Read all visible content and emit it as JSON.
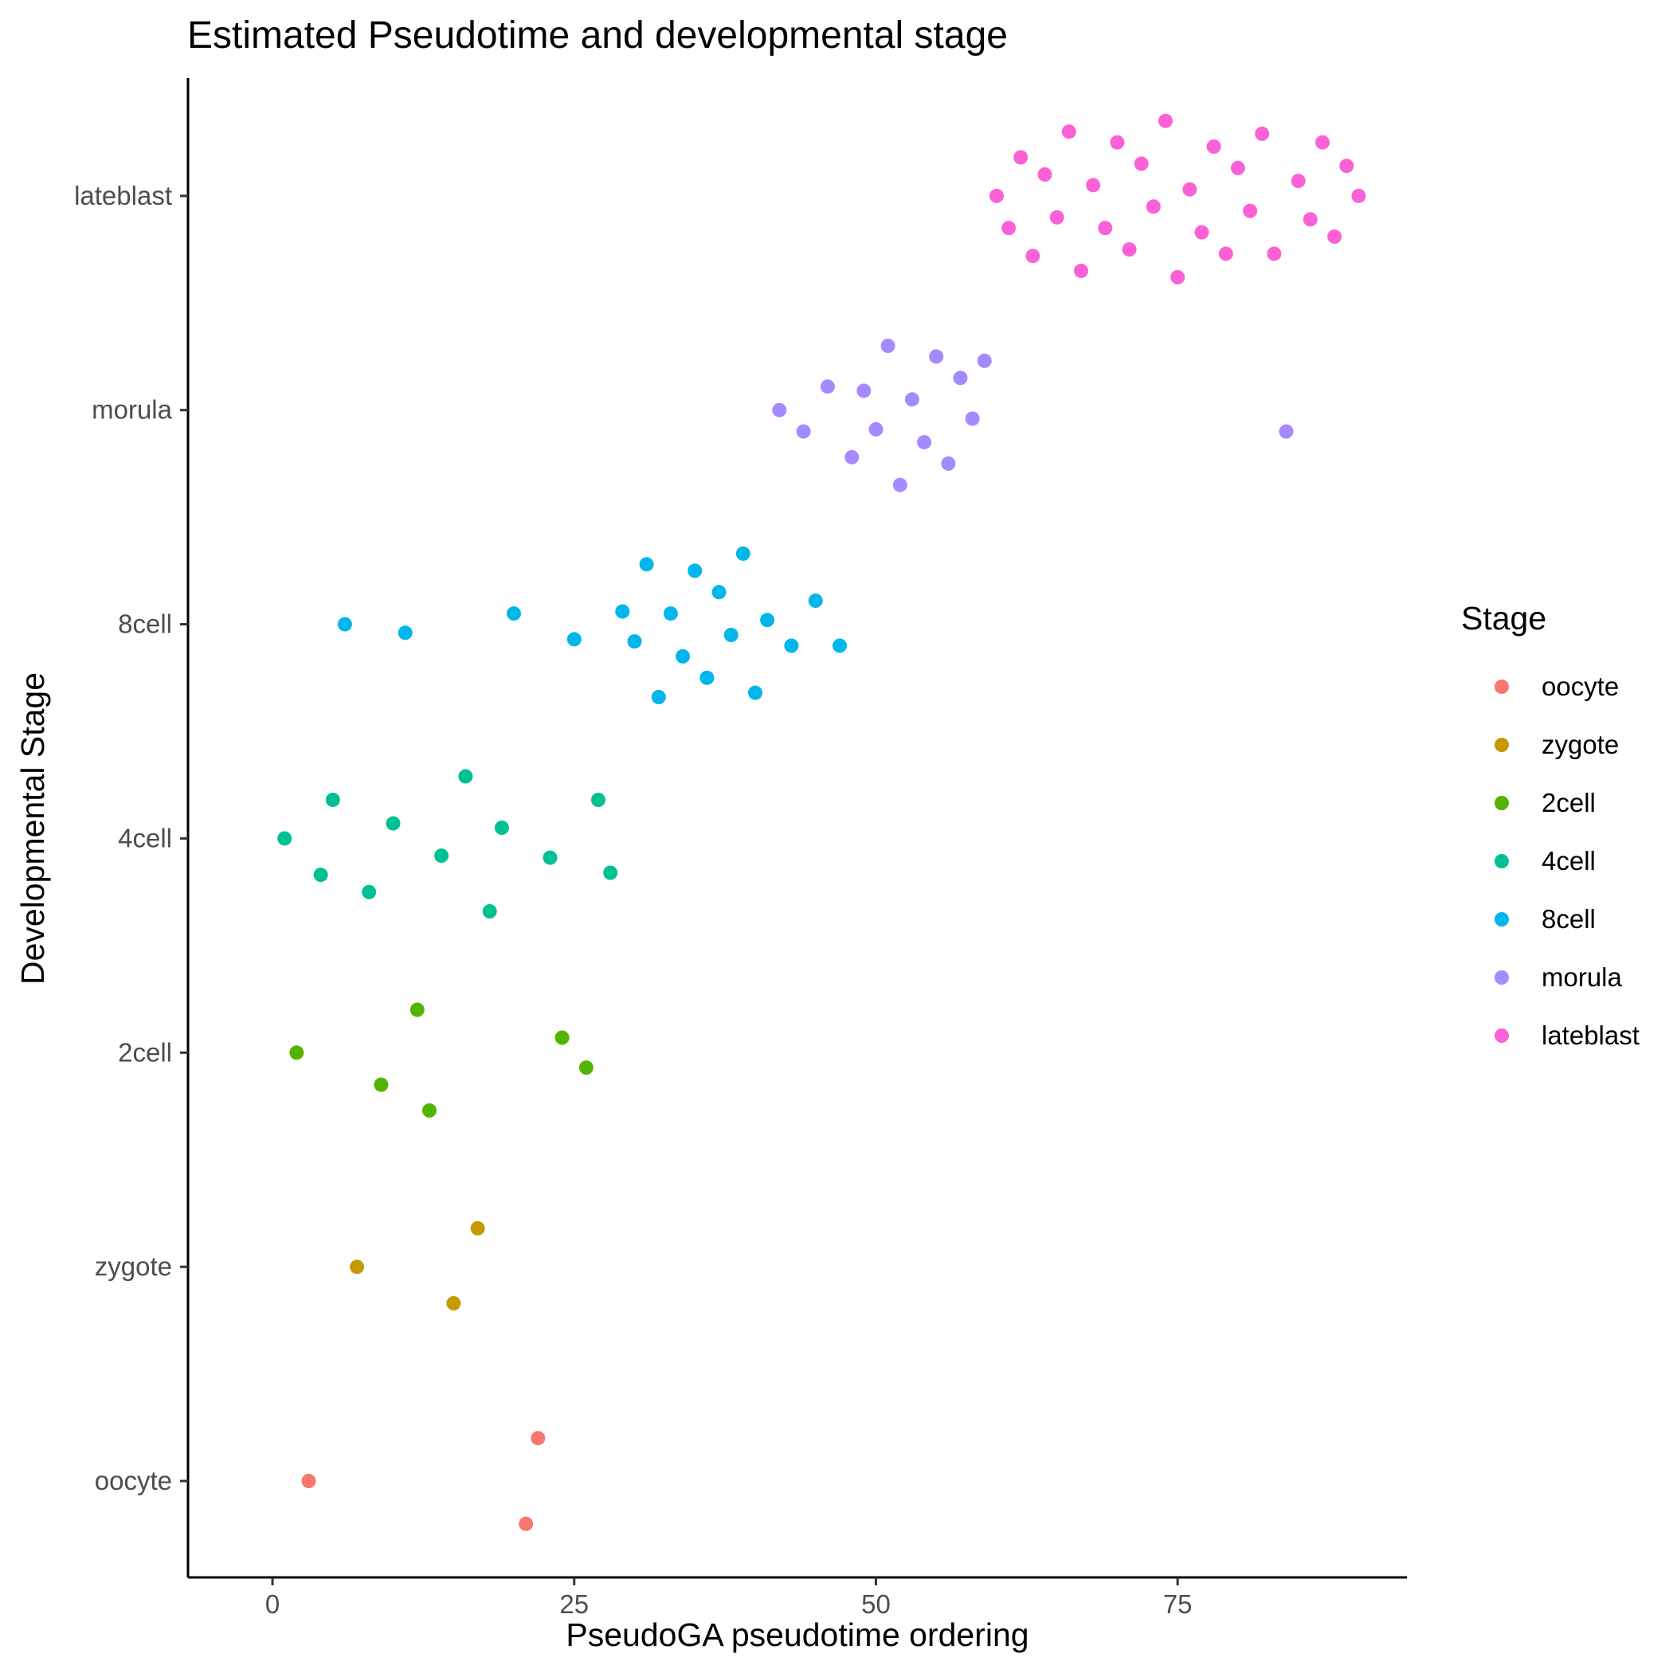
{
  "chart_data": {
    "type": "scatter",
    "title": "Estimated Pseudotime and developmental stage",
    "xlabel": "PseudoGA pseudotime ordering",
    "ylabel": "Developmental Stage",
    "xlim": [
      -7,
      94
    ],
    "x_ticks": [
      0,
      25,
      50,
      75
    ],
    "x_tick_labels": [
      "0",
      "25",
      "50",
      "75"
    ],
    "y_categories": [
      "oocyte",
      "zygote",
      "2cell",
      "4cell",
      "8cell",
      "morula",
      "lateblast"
    ],
    "grid": false,
    "legend": {
      "title": "Stage",
      "position": "right"
    },
    "colors": {
      "oocyte": "#F8766D",
      "zygote": "#C49A00",
      "2cell": "#53B400",
      "4cell": "#00C094",
      "8cell": "#00B6EB",
      "morula": "#A58AFF",
      "lateblast": "#FB61D7"
    },
    "series": [
      {
        "name": "oocyte",
        "points": [
          [
            3,
            0.0
          ],
          [
            21,
            -0.2
          ],
          [
            22,
            0.2
          ]
        ]
      },
      {
        "name": "zygote",
        "points": [
          [
            7,
            0.0
          ],
          [
            15,
            -0.17
          ],
          [
            17,
            0.18
          ]
        ]
      },
      {
        "name": "2cell",
        "points": [
          [
            2,
            0.0
          ],
          [
            9,
            -0.15
          ],
          [
            12,
            0.2
          ],
          [
            13,
            -0.27
          ],
          [
            24,
            0.07
          ],
          [
            26,
            -0.07
          ]
        ]
      },
      {
        "name": "4cell",
        "points": [
          [
            1,
            0.0
          ],
          [
            4,
            -0.17
          ],
          [
            5,
            0.18
          ],
          [
            8,
            -0.25
          ],
          [
            10,
            0.07
          ],
          [
            14,
            -0.08
          ],
          [
            16,
            0.29
          ],
          [
            18,
            -0.34
          ],
          [
            19,
            0.05
          ],
          [
            23,
            -0.09
          ],
          [
            27,
            0.18
          ],
          [
            28,
            -0.16
          ]
        ]
      },
      {
        "name": "8cell",
        "points": [
          [
            6,
            0.0
          ],
          [
            11,
            -0.04
          ],
          [
            20,
            0.05
          ],
          [
            25,
            -0.07
          ],
          [
            29,
            0.06
          ],
          [
            30,
            -0.08
          ],
          [
            31,
            0.28
          ],
          [
            32,
            -0.34
          ],
          [
            33,
            0.05
          ],
          [
            34,
            -0.15
          ],
          [
            35,
            0.25
          ],
          [
            36,
            -0.25
          ],
          [
            37,
            0.15
          ],
          [
            38,
            -0.05
          ],
          [
            39,
            0.33
          ],
          [
            40,
            -0.32
          ],
          [
            41,
            0.02
          ],
          [
            43,
            -0.1
          ],
          [
            45,
            0.11
          ],
          [
            47,
            -0.1
          ]
        ]
      },
      {
        "name": "morula",
        "points": [
          [
            42,
            0.0
          ],
          [
            44,
            -0.1
          ],
          [
            46,
            0.11
          ],
          [
            48,
            -0.22
          ],
          [
            49,
            0.09
          ],
          [
            50,
            -0.09
          ],
          [
            51,
            0.3
          ],
          [
            52,
            -0.35
          ],
          [
            53,
            0.05
          ],
          [
            54,
            -0.15
          ],
          [
            55,
            0.25
          ],
          [
            56,
            -0.25
          ],
          [
            57,
            0.15
          ],
          [
            58,
            -0.04
          ],
          [
            59,
            0.23
          ],
          [
            84,
            -0.1
          ]
        ]
      },
      {
        "name": "lateblast",
        "points": [
          [
            60,
            0.0
          ],
          [
            61,
            -0.15
          ],
          [
            62,
            0.18
          ],
          [
            63,
            -0.28
          ],
          [
            64,
            0.1
          ],
          [
            65,
            -0.1
          ],
          [
            66,
            0.3
          ],
          [
            67,
            -0.35
          ],
          [
            68,
            0.05
          ],
          [
            69,
            -0.15
          ],
          [
            70,
            0.25
          ],
          [
            71,
            -0.25
          ],
          [
            72,
            0.15
          ],
          [
            73,
            -0.05
          ],
          [
            74,
            0.35
          ],
          [
            75,
            -0.38
          ],
          [
            76,
            0.03
          ],
          [
            77,
            -0.17
          ],
          [
            78,
            0.23
          ],
          [
            79,
            -0.27
          ],
          [
            80,
            0.13
          ],
          [
            81,
            -0.07
          ],
          [
            82,
            0.29
          ],
          [
            83,
            -0.27
          ],
          [
            85,
            0.07
          ],
          [
            86,
            -0.11
          ],
          [
            87,
            0.25
          ],
          [
            88,
            -0.19
          ],
          [
            89,
            0.14
          ],
          [
            90,
            0.0
          ]
        ]
      }
    ]
  }
}
